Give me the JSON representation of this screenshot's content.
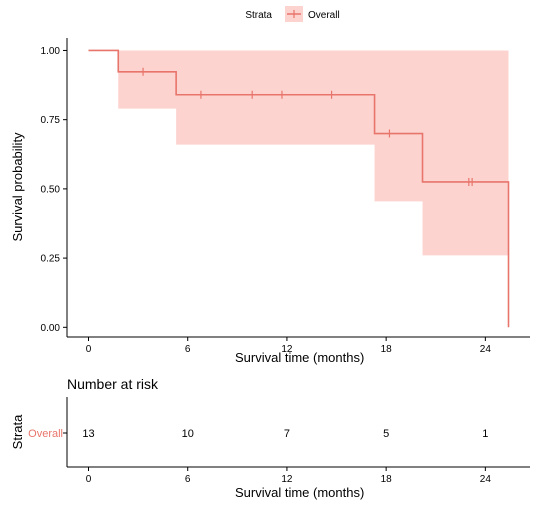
{
  "legend": {
    "title": "Strata",
    "label": "Overall",
    "placement": "top"
  },
  "colors": {
    "curve": "#e8756b",
    "band": "#fcd3cf",
    "axis": "#000000",
    "text": "#000000"
  },
  "chart_data": [
    {
      "type": "line",
      "subtype": "kaplan-meier-step",
      "title": "",
      "xlabel": "Survival time (months)",
      "ylabel": "Survival probability",
      "xlim": [
        -1.3,
        26.7
      ],
      "ylim": [
        -0.035,
        1.045
      ],
      "xticks": [
        0,
        6,
        12,
        18,
        24
      ],
      "xtick_labels": [
        "0",
        "6",
        "12",
        "18",
        "24"
      ],
      "yticks": [
        0,
        0.25,
        0.5,
        0.75,
        1
      ],
      "ytick_labels": [
        "0.00",
        "0.25",
        "0.50",
        "0.75",
        "1.00"
      ],
      "grid": false,
      "series": [
        {
          "name": "Overall",
          "steps": [
            {
              "x": 0,
              "y": 1.0,
              "lower": 1.0,
              "upper": 1.0
            },
            {
              "x": 1.8,
              "y": 0.923,
              "lower": 0.79,
              "upper": 1.0
            },
            {
              "x": 5.3,
              "y": 0.84,
              "lower": 0.66,
              "upper": 1.0
            },
            {
              "x": 17.3,
              "y": 0.7,
              "lower": 0.455,
              "upper": 1.0
            },
            {
              "x": 20.2,
              "y": 0.525,
              "lower": 0.26,
              "upper": 1.0
            },
            {
              "x": 25.4,
              "y": 0.0,
              "lower": 0.26,
              "upper": 1.0
            }
          ],
          "end_x": 25.4,
          "censor_x": [
            3.3,
            6.8,
            9.9,
            11.7,
            14.7,
            18.2,
            23.0,
            23.2
          ]
        }
      ]
    },
    {
      "type": "table",
      "title": "Number at risk",
      "ylabel": "Strata",
      "xlabel": "Survival time (months)",
      "row_label": "Overall",
      "xticks": [
        0,
        6,
        12,
        18,
        24
      ],
      "xtick_labels": [
        "0",
        "6",
        "12",
        "18",
        "24"
      ],
      "counts": [
        "13",
        "10",
        "7",
        "5",
        "1"
      ]
    }
  ]
}
